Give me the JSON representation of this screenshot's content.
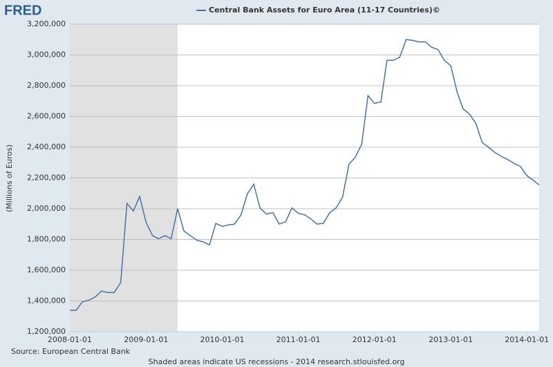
{
  "logo": "FRED",
  "chart_data": {
    "type": "line",
    "y_label": "(Millions of Euros)",
    "source": "Source: European Central Bank",
    "note": "Shaded areas indicate US recessions - 2014 research.stlouisfed.org",
    "x": [
      "2008-01-01",
      "2008-02-01",
      "2008-03-01",
      "2008-04-01",
      "2008-05-01",
      "2008-06-01",
      "2008-07-01",
      "2008-08-01",
      "2008-09-01",
      "2008-10-01",
      "2008-11-01",
      "2008-12-01",
      "2009-01-01",
      "2009-02-01",
      "2009-03-01",
      "2009-04-01",
      "2009-05-01",
      "2009-06-01",
      "2009-07-01",
      "2009-08-01",
      "2009-09-01",
      "2009-10-01",
      "2009-11-01",
      "2009-12-01",
      "2010-01-01",
      "2010-02-01",
      "2010-03-01",
      "2010-04-01",
      "2010-05-01",
      "2010-06-01",
      "2010-07-01",
      "2010-08-01",
      "2010-09-01",
      "2010-10-01",
      "2010-11-01",
      "2010-12-01",
      "2011-01-01",
      "2011-02-01",
      "2011-03-01",
      "2011-04-01",
      "2011-05-01",
      "2011-06-01",
      "2011-07-01",
      "2011-08-01",
      "2011-09-01",
      "2011-10-01",
      "2011-11-01",
      "2011-12-01",
      "2012-01-01",
      "2012-02-01",
      "2012-03-01",
      "2012-04-01",
      "2012-05-01",
      "2012-06-01",
      "2012-07-01",
      "2012-08-01",
      "2012-09-01",
      "2012-10-01",
      "2012-11-01",
      "2012-12-01",
      "2013-01-01",
      "2013-02-01",
      "2013-03-01",
      "2013-04-01",
      "2013-05-01",
      "2013-06-01",
      "2013-07-01",
      "2013-08-01",
      "2013-09-01",
      "2013-10-01",
      "2013-11-01",
      "2013-12-01",
      "2014-01-01",
      "2014-02-01",
      "2014-03-01"
    ],
    "series": [
      {
        "name": "Central Bank Assets for Euro Area (11-17 Countries)©",
        "color": "#4572a7",
        "values": [
          1340000,
          1340000,
          1395000,
          1405000,
          1425000,
          1465000,
          1455000,
          1455000,
          1520000,
          2035000,
          1985000,
          2080000,
          1910000,
          1825000,
          1805000,
          1825000,
          1805000,
          2000000,
          1855000,
          1825000,
          1795000,
          1785000,
          1765000,
          1905000,
          1885000,
          1895000,
          1900000,
          1960000,
          2095000,
          2160000,
          2005000,
          1965000,
          1975000,
          1900000,
          1915000,
          2005000,
          1970000,
          1960000,
          1935000,
          1900000,
          1905000,
          1975000,
          2005000,
          2075000,
          2290000,
          2335000,
          2420000,
          2735000,
          2685000,
          2695000,
          2965000,
          2965000,
          2985000,
          3100000,
          3095000,
          3085000,
          3085000,
          3050000,
          3035000,
          2965000,
          2930000,
          2755000,
          2650000,
          2615000,
          2555000,
          2430000,
          2400000,
          2365000,
          2340000,
          2320000,
          2295000,
          2275000,
          2215000,
          2185000,
          2155000
        ]
      }
    ],
    "xlim": [
      "2008-01-01",
      "2014-03-01"
    ],
    "xticks": [
      "2008-01-01",
      "2009-01-01",
      "2010-01-01",
      "2011-01-01",
      "2012-01-01",
      "2013-01-01",
      "2014-01-01"
    ],
    "ylim": [
      1200000,
      3200000
    ],
    "yticks": [
      {
        "value": 1200000,
        "label": "1,200,000"
      },
      {
        "value": 1400000,
        "label": "1,400,000"
      },
      {
        "value": 1600000,
        "label": "1,600,000"
      },
      {
        "value": 1800000,
        "label": "1,800,000"
      },
      {
        "value": 2000000,
        "label": "2,000,000"
      },
      {
        "value": 2200000,
        "label": "2,200,000"
      },
      {
        "value": 2400000,
        "label": "2,400,000"
      },
      {
        "value": 2600000,
        "label": "2,600,000"
      },
      {
        "value": 2800000,
        "label": "2,800,000"
      },
      {
        "value": 3000000,
        "label": "3,000,000"
      },
      {
        "value": 3200000,
        "label": "3,200,000"
      }
    ],
    "recessions": [
      [
        "2008-01-01",
        "2009-06-01"
      ]
    ],
    "grid": true
  }
}
